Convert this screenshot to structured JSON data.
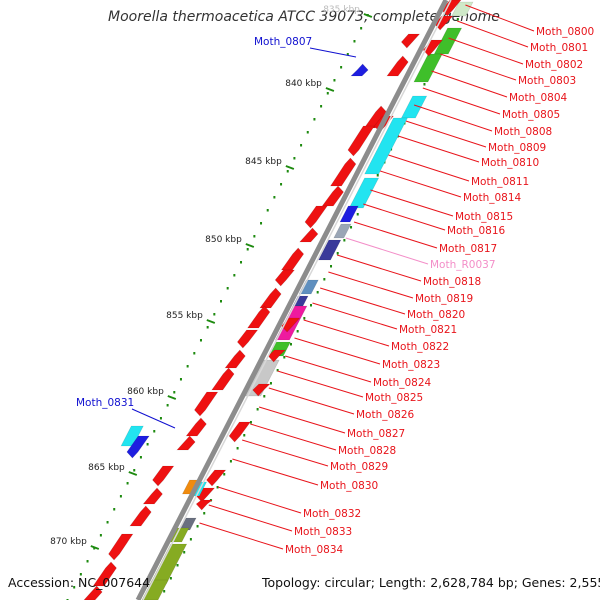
{
  "title": "Moorella thermoacetica ATCC 39073, complete genome",
  "accession": "Accession: NC_007644",
  "summary": "Topology: circular; Length: 2,628,784 bp; Genes: 2,555",
  "scale_labels": [
    "835 kbp",
    "840 kbp",
    "845 kbp",
    "850 kbp",
    "855 kbp",
    "860 kbp",
    "865 kbp",
    "870 kbp"
  ],
  "gene_labels_right": [
    "Moth_0800",
    "Moth_0801",
    "Moth_0802",
    "Moth_0803",
    "Moth_0804",
    "Moth_0805",
    "Moth_0808",
    "Moth_0809",
    "Moth_0810",
    "Moth_0811",
    "Moth_0814",
    "Moth_0815",
    "Moth_0816",
    "Moth_0817",
    "Moth_R0037",
    "Moth_0818",
    "Moth_0819",
    "Moth_0820",
    "Moth_0821",
    "Moth_0822",
    "Moth_0823",
    "Moth_0824",
    "Moth_0825",
    "Moth_0826",
    "Moth_0827",
    "Moth_0828",
    "Moth_0829",
    "Moth_0830",
    "Moth_0832",
    "Moth_0833",
    "Moth_0834"
  ],
  "gene_labels_left": [
    "Moth_0807",
    "Moth_0831"
  ],
  "colors": {
    "label_red": "#e8141b",
    "label_blue": "#1010d0",
    "label_pink": "#f38ec8",
    "backbone": "#8c8c8c",
    "feature_red": "#ee1111",
    "feature_cyan": "#22e4f0",
    "feature_green": "#3fbf2a",
    "feature_olive": "#86ab22",
    "feature_blue": "#1e1ee0",
    "feature_navy": "#3a3a9a",
    "feature_steel": "#5f8fbf",
    "feature_magenta": "#ee1a9f",
    "feature_grey": "#c8c8c8",
    "feature_orange": "#f08b0f",
    "tick_green": "#1d8a0f"
  }
}
